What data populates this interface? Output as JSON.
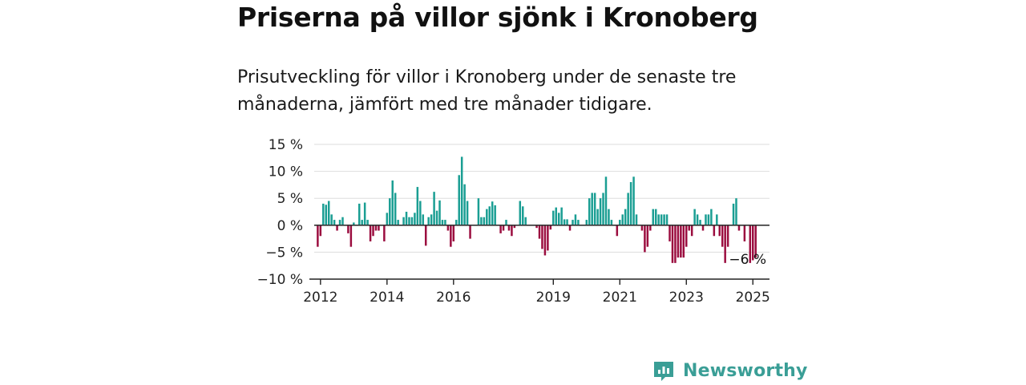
{
  "header": {
    "title": "Priserna på villor sjönk i Kronoberg",
    "subtitle": "Prisutveckling för villor i Kronoberg under de senaste tre månaderna, jämfört med tre månader tidigare."
  },
  "brand": {
    "name": "Newsworthy",
    "icon": "newsworthy-logo-icon",
    "color": "#3a9e96"
  },
  "chart_data": {
    "type": "bar",
    "xlabel": "",
    "ylabel": "",
    "ylim": [
      -10,
      15
    ],
    "y_ticks": [
      15,
      10,
      5,
      0,
      -5,
      -10
    ],
    "y_tick_labels": [
      "15 %",
      "10 %",
      "5 %",
      "0 %",
      "−5 %",
      "−10 %"
    ],
    "x_ticks": [
      "2012",
      "2014",
      "2016",
      "2019",
      "2021",
      "2023",
      "2025"
    ],
    "x_range": [
      "2011-09",
      "2025-07"
    ],
    "grid": true,
    "colors": {
      "positive": "#1a9e93",
      "negative": "#9b0d3f"
    },
    "end_label": "−6 %",
    "series": [
      {
        "start": "2011-10",
        "values": [
          0.0,
          0.0,
          -4.0,
          -2.0,
          4.0,
          3.8,
          4.5,
          2.0,
          1.0,
          -1.0,
          1.0,
          1.5,
          0.0,
          -1.5,
          -4.0,
          0.5,
          0.0,
          4.0,
          1.0,
          4.2,
          1.0,
          -3.0,
          -2.0,
          -1.0,
          -1.0,
          0.0,
          -3.0,
          2.3,
          5.0,
          8.3,
          6.0,
          1.0,
          0.0,
          1.5,
          2.5,
          1.5,
          1.5,
          2.3,
          7.1,
          4.5,
          2.0,
          -3.8,
          1.5,
          2.0,
          6.2,
          2.7,
          4.6,
          1.0,
          1.0,
          -1.0,
          -4.0,
          -3.0,
          1.0,
          9.3,
          12.7,
          7.6,
          4.5,
          -2.5,
          0.0,
          0.0,
          5.0,
          1.5,
          1.5,
          3.0,
          3.5,
          4.4,
          3.7,
          0.0,
          -1.5,
          -1.0,
          1.0,
          -1.0,
          -2.0,
          -0.5,
          0.0,
          4.5,
          3.5,
          1.5,
          0.0,
          0.0,
          0.0,
          -0.5,
          -2.5,
          -4.4,
          -5.6,
          -4.7,
          -0.8,
          2.7,
          3.3,
          2.3,
          3.3,
          1.1,
          1.1,
          -1.0,
          1.0,
          2.0,
          1.0,
          0.0,
          0.0,
          1.0,
          5.0,
          6.0,
          6.0,
          3.0,
          5.0,
          6.0,
          9.0,
          3.0,
          1.0,
          0.0,
          -2.0,
          1.0,
          2.0,
          3.0,
          6.0,
          8.0,
          9.0,
          2.0,
          0.0,
          -1.0,
          -5.0,
          -4.0,
          -1.0,
          3.0,
          3.0,
          2.0,
          2.0,
          2.0,
          2.0,
          -3.0,
          -7.0,
          -7.0,
          -6.0,
          -6.0,
          -6.0,
          -4.0,
          -1.0,
          -2.0,
          3.0,
          2.0,
          1.0,
          -1.0,
          2.0,
          2.0,
          3.0,
          -2.0,
          2.0,
          -2.0,
          -4.0,
          -7.0,
          -4.0,
          0.0,
          4.0,
          5.0,
          -1.0,
          0.0,
          -3.0,
          0.0,
          -7.0,
          -6.5,
          -6.0
        ]
      }
    ]
  }
}
